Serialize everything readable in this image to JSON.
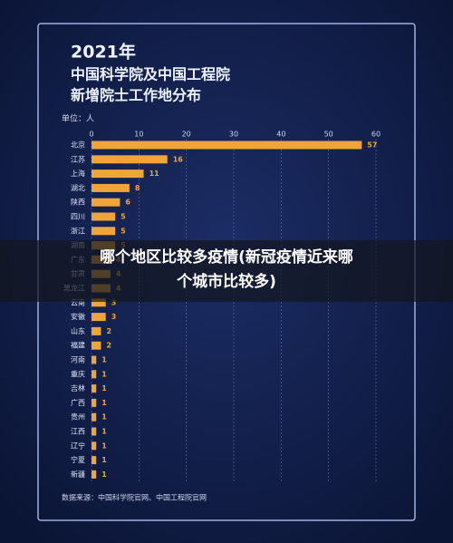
{
  "chart_data": {
    "type": "hbar",
    "title_lines": [
      "2021年",
      "中国科学院及中国工程院",
      "新增院士工作地分布"
    ],
    "unit_label": "单位：人",
    "source": "数据来源：中国科学院官网、中国工程院官网",
    "categories": [
      "北京",
      "江苏",
      "上海",
      "湖北",
      "陕西",
      "四川",
      "浙江",
      "湖南",
      "广东",
      "甘肃",
      "黑龙江",
      "云南",
      "安徽",
      "山东",
      "福建",
      "河南",
      "重庆",
      "吉林",
      "广西",
      "贵州",
      "江西",
      "辽宁",
      "宁夏",
      "新疆"
    ],
    "values": [
      57,
      16,
      11,
      8,
      6,
      5,
      5,
      5,
      4,
      4,
      4,
      3,
      3,
      2,
      2,
      1,
      1,
      1,
      1,
      1,
      1,
      1,
      1,
      1
    ],
    "color": "#f0a53a",
    "xlim": [
      0,
      60
    ],
    "xticks": [
      0,
      10,
      20,
      30,
      40,
      50,
      60
    ],
    "grid": true
  },
  "overlay": {
    "lines": [
      "哪个地区比较多疫情(新冠疫情近来哪",
      "个城市比较多)"
    ]
  }
}
